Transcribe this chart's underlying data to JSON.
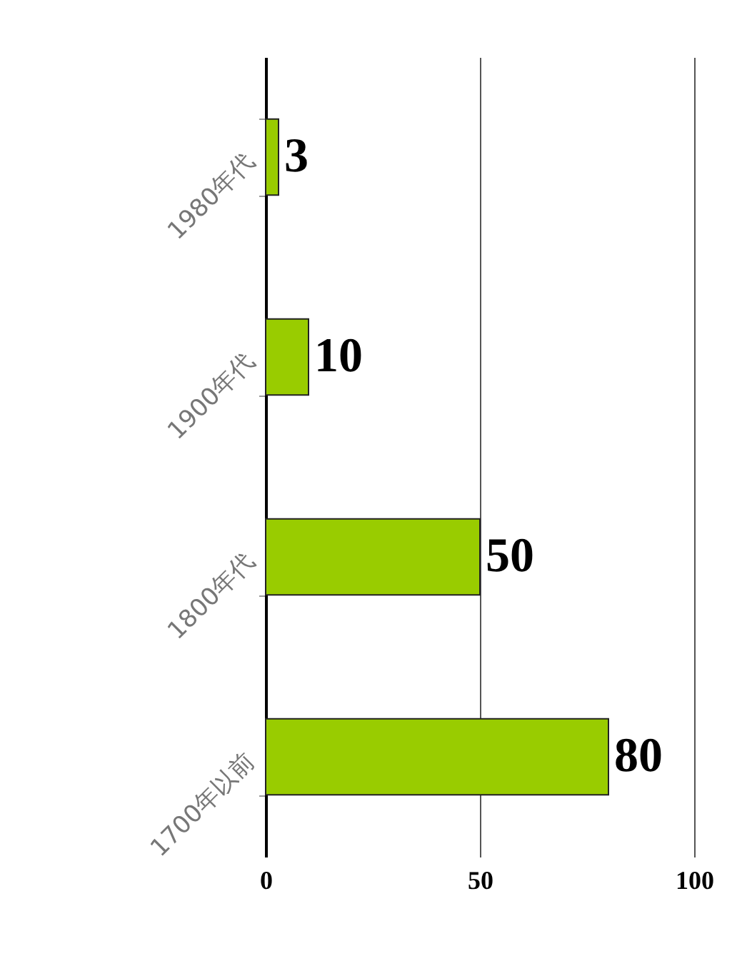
{
  "chart_data": {
    "type": "bar",
    "orientation": "horizontal",
    "categories": [
      "1980年代",
      "1900年代",
      "1800年代",
      "1700年以前"
    ],
    "values": [
      3,
      10,
      50,
      80
    ],
    "color": "#99cc00",
    "xlim": [
      0,
      100
    ],
    "xticks": [
      0,
      50,
      100
    ],
    "grid": "x",
    "data_labels": true
  }
}
